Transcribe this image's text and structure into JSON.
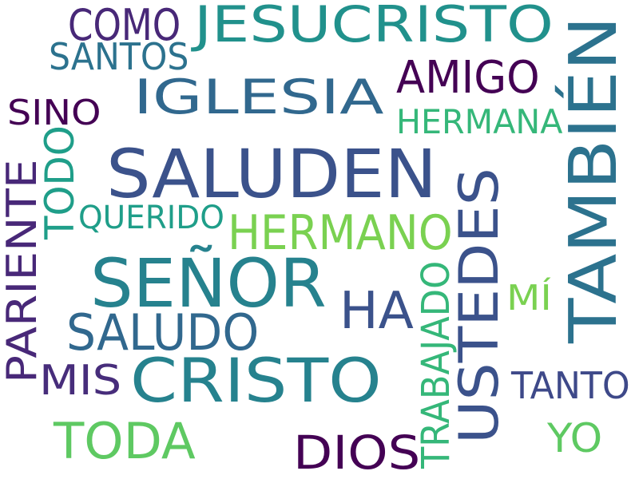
{
  "title": "",
  "words": [
    {
      "id": "jesucristo",
      "text": "JESUCRISTO",
      "color": "#21918c"
    },
    {
      "id": "saluden",
      "text": "SALUDEN",
      "color": "#3b528b"
    },
    {
      "id": "senor",
      "text": "SEÑOR",
      "color": "#26828e"
    },
    {
      "id": "tambien",
      "text": "TAMBIÉN",
      "color": "#2c728e"
    },
    {
      "id": "ustedes",
      "text": "USTEDES",
      "color": "#3b528b"
    },
    {
      "id": "cristo",
      "text": "CRISTO",
      "color": "#26828e"
    },
    {
      "id": "iglesia",
      "text": "IGLESIA",
      "color": "#31688e"
    },
    {
      "id": "hermano",
      "text": "HERMANO",
      "color": "#7ad151"
    },
    {
      "id": "toda",
      "text": "TODA",
      "color": "#5ec962"
    },
    {
      "id": "dios",
      "text": "DIOS",
      "color": "#440154"
    },
    {
      "id": "ha",
      "text": "HA",
      "color": "#3b528b"
    },
    {
      "id": "saludo",
      "text": "SALUDO",
      "color": "#31688e"
    },
    {
      "id": "amigo",
      "text": "AMIGO",
      "color": "#440154"
    },
    {
      "id": "como",
      "text": "COMO",
      "color": "#482878"
    },
    {
      "id": "santos",
      "text": "SANTOS",
      "color": "#2c728e"
    },
    {
      "id": "hermana",
      "text": "HERMANA",
      "color": "#35b779"
    },
    {
      "id": "sino",
      "text": "SINO",
      "color": "#440154"
    },
    {
      "id": "todo",
      "text": "TODO",
      "color": "#1f9e89"
    },
    {
      "id": "pariente",
      "text": "PARIENTE",
      "color": "#482878"
    },
    {
      "id": "querido",
      "text": "QUERIDO",
      "color": "#1f9e89"
    },
    {
      "id": "mis",
      "text": "MIS",
      "color": "#472d7b"
    },
    {
      "id": "trabajado",
      "text": "TRABAJADO",
      "color": "#35b779"
    },
    {
      "id": "mi",
      "text": "MÍ",
      "color": "#7ad151"
    },
    {
      "id": "tanto",
      "text": "TANTO",
      "color": "#3e4989"
    },
    {
      "id": "yo",
      "text": "YO",
      "color": "#5ec962"
    }
  ]
}
